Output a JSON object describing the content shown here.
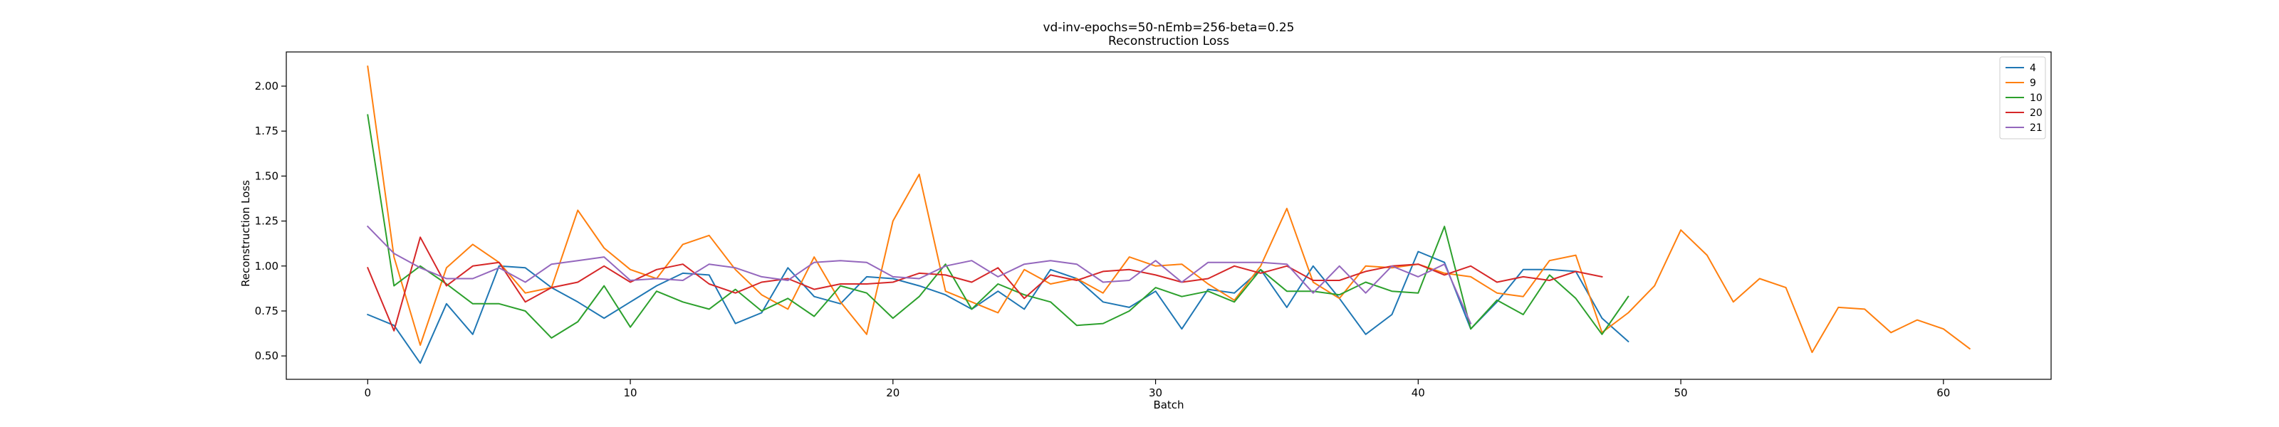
{
  "chart_data": {
    "type": "line",
    "title": "vd-inv-epochs=50-nEmb=256-beta=0.25",
    "subtitle": "Reconstruction Loss",
    "xlabel": "Batch",
    "ylabel": "Reconstruction Loss",
    "xlim": [
      -3.1,
      64.1
    ],
    "ylim": [
      0.37,
      2.19
    ],
    "xticks": [
      0,
      10,
      20,
      30,
      40,
      50,
      60
    ],
    "xtick_labels": [
      "0",
      "10",
      "20",
      "30",
      "40",
      "50",
      "60"
    ],
    "yticks": [
      0.5,
      0.75,
      1.0,
      1.25,
      1.5,
      1.75,
      2.0
    ],
    "ytick_labels": [
      "0.50",
      "0.75",
      "1.00",
      "1.25",
      "1.50",
      "1.75",
      "2.00"
    ],
    "grid": false,
    "legend_position": "top-right",
    "series": [
      {
        "name": "4",
        "color": "#1f77b4",
        "x": [
          0,
          1,
          2,
          3,
          4,
          5,
          6,
          7,
          8,
          9,
          10,
          11,
          12,
          13,
          14,
          15,
          16,
          17,
          18,
          19,
          20,
          21,
          22,
          23,
          24,
          25,
          26,
          27,
          28,
          29,
          30,
          31,
          32,
          33,
          34,
          35,
          36,
          37,
          38,
          39,
          40,
          41,
          42,
          43,
          44,
          45,
          46,
          47,
          48
        ],
        "values": [
          0.73,
          0.67,
          0.46,
          0.79,
          0.62,
          1.0,
          0.99,
          0.88,
          0.8,
          0.71,
          0.8,
          0.89,
          0.96,
          0.95,
          0.68,
          0.74,
          0.99,
          0.83,
          0.79,
          0.94,
          0.93,
          0.89,
          0.84,
          0.76,
          0.86,
          0.76,
          0.98,
          0.93,
          0.8,
          0.77,
          0.86,
          0.65,
          0.87,
          0.85,
          0.98,
          0.77,
          1.0,
          0.82,
          0.62,
          0.73,
          1.08,
          1.02,
          0.65,
          0.8,
          0.98,
          0.98,
          0.97,
          0.71,
          0.58
        ]
      },
      {
        "name": "9",
        "color": "#ff7f0e",
        "x": [
          0,
          1,
          2,
          3,
          4,
          5,
          6,
          7,
          8,
          9,
          10,
          11,
          12,
          13,
          14,
          15,
          16,
          17,
          18,
          19,
          20,
          21,
          22,
          23,
          24,
          25,
          26,
          27,
          28,
          29,
          30,
          31,
          32,
          33,
          34,
          35,
          36,
          37,
          38,
          39,
          40,
          41,
          42,
          43,
          44,
          45,
          46,
          47,
          48,
          49,
          50,
          51,
          52,
          53,
          54,
          55,
          56,
          57,
          58,
          59,
          60,
          61
        ],
        "values": [
          2.11,
          1.05,
          0.56,
          0.99,
          1.12,
          1.02,
          0.85,
          0.88,
          1.31,
          1.1,
          0.98,
          0.93,
          1.12,
          1.17,
          0.98,
          0.84,
          0.76,
          1.05,
          0.8,
          0.62,
          1.25,
          1.51,
          0.86,
          0.8,
          0.74,
          0.98,
          0.9,
          0.93,
          0.85,
          1.05,
          1.0,
          1.01,
          0.9,
          0.81,
          1.0,
          1.32,
          0.91,
          0.82,
          1.0,
          0.99,
          1.01,
          0.96,
          0.94,
          0.85,
          0.83,
          1.03,
          1.06,
          0.63,
          0.74,
          0.89,
          1.2,
          1.06,
          0.8,
          0.93,
          0.88,
          0.52,
          0.77,
          0.76,
          0.63,
          0.7,
          0.65,
          0.54
        ]
      },
      {
        "name": "10",
        "color": "#2ca02c",
        "x": [
          0,
          1,
          2,
          3,
          4,
          5,
          6,
          7,
          8,
          9,
          10,
          11,
          12,
          13,
          14,
          15,
          16,
          17,
          18,
          19,
          20,
          21,
          22,
          23,
          24,
          25,
          26,
          27,
          28,
          29,
          30,
          31,
          32,
          33,
          34,
          35,
          36,
          37,
          38,
          39,
          40,
          41,
          42,
          43,
          44,
          45,
          46,
          47,
          48
        ],
        "values": [
          1.84,
          0.89,
          1.0,
          0.9,
          0.79,
          0.79,
          0.75,
          0.6,
          0.69,
          0.89,
          0.66,
          0.86,
          0.8,
          0.76,
          0.87,
          0.75,
          0.82,
          0.72,
          0.89,
          0.85,
          0.71,
          0.83,
          1.01,
          0.76,
          0.9,
          0.84,
          0.8,
          0.67,
          0.68,
          0.75,
          0.88,
          0.83,
          0.86,
          0.8,
          0.98,
          0.86,
          0.86,
          0.84,
          0.91,
          0.86,
          0.85,
          1.22,
          0.65,
          0.81,
          0.73,
          0.95,
          0.82,
          0.62,
          0.83
        ]
      },
      {
        "name": "20",
        "color": "#d62728",
        "x": [
          0,
          1,
          2,
          3,
          4,
          5,
          6,
          7,
          8,
          9,
          10,
          11,
          12,
          13,
          14,
          15,
          16,
          17,
          18,
          19,
          20,
          21,
          22,
          23,
          24,
          25,
          26,
          27,
          28,
          29,
          30,
          31,
          32,
          33,
          34,
          35,
          36,
          37,
          38,
          39,
          40,
          41,
          42,
          43,
          44,
          45,
          46,
          47
        ],
        "values": [
          0.99,
          0.64,
          1.16,
          0.89,
          1.0,
          1.02,
          0.8,
          0.88,
          0.91,
          1.0,
          0.91,
          0.98,
          1.01,
          0.9,
          0.85,
          0.91,
          0.93,
          0.87,
          0.9,
          0.9,
          0.91,
          0.96,
          0.95,
          0.91,
          0.99,
          0.82,
          0.95,
          0.92,
          0.97,
          0.98,
          0.95,
          0.91,
          0.93,
          1.0,
          0.96,
          1.0,
          0.92,
          0.92,
          0.97,
          1.0,
          1.01,
          0.95,
          1.0,
          0.91,
          0.94,
          0.92,
          0.97,
          0.94
        ]
      },
      {
        "name": "21",
        "color": "#9467bd",
        "x": [
          0,
          1,
          2,
          3,
          4,
          5,
          6,
          7,
          8,
          9,
          10,
          11,
          12,
          13,
          14,
          15,
          16,
          17,
          18,
          19,
          20,
          21,
          22,
          23,
          24,
          25,
          26,
          27,
          28,
          29,
          30,
          31,
          32,
          33,
          34,
          35,
          36,
          37,
          38,
          39,
          40,
          41,
          42
        ],
        "values": [
          1.22,
          1.07,
          0.99,
          0.93,
          0.93,
          0.99,
          0.91,
          1.01,
          1.03,
          1.05,
          0.92,
          0.93,
          0.92,
          1.01,
          0.99,
          0.94,
          0.92,
          1.02,
          1.03,
          1.02,
          0.94,
          0.93,
          1.0,
          1.03,
          0.94,
          1.01,
          1.03,
          1.01,
          0.91,
          0.92,
          1.03,
          0.91,
          1.02,
          1.02,
          1.02,
          1.01,
          0.85,
          1.0,
          0.85,
          1.0,
          0.94,
          1.01,
          0.68
        ]
      }
    ]
  }
}
